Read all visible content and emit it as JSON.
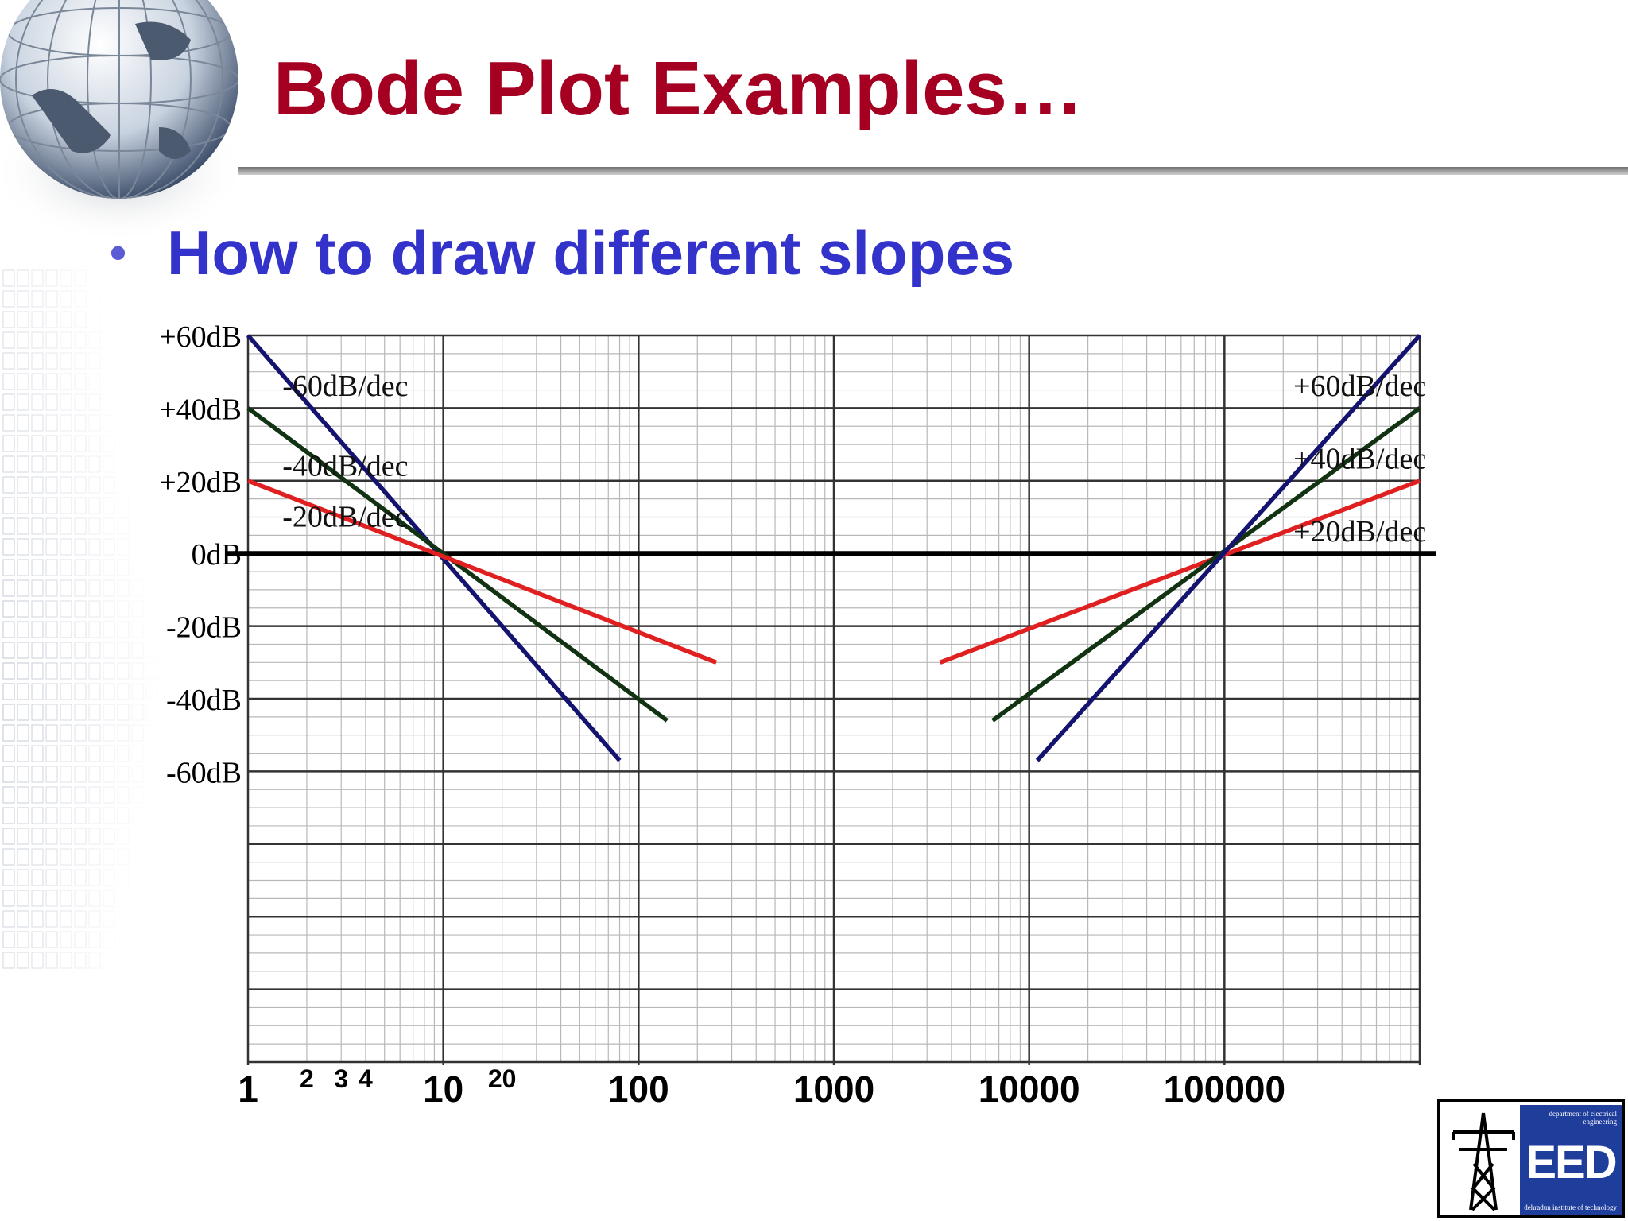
{
  "slide": {
    "title": "Bode Plot Examples…",
    "bullet": "How to draw different slopes",
    "bullet_marker": "•"
  },
  "logo": {
    "top_text": "department of electrical engineering",
    "mark": "EED",
    "bottom_text": "dehradun institute of technology"
  },
  "colors": {
    "title": "#A50021",
    "bullet": "#3333CC",
    "slope_20": "#E02020",
    "slope_40": "#123312",
    "slope_60": "#141470",
    "grid_major": "#333333",
    "grid_minor": "#b8b8b8",
    "zero_line": "#000000"
  },
  "chart_data": {
    "type": "line",
    "x_scale": "log",
    "xlim": [
      1,
      1000000
    ],
    "ylim": [
      -140,
      60
    ],
    "grid": true,
    "x_tick_labels": [
      {
        "x": 1,
        "label": "1",
        "size": "large"
      },
      {
        "x": 2,
        "label": "2",
        "size": "small"
      },
      {
        "x": 3,
        "label": "3",
        "size": "small"
      },
      {
        "x": 4,
        "label": "4",
        "size": "small"
      },
      {
        "x": 10,
        "label": "10",
        "size": "large"
      },
      {
        "x": 20,
        "label": "20",
        "size": "small"
      },
      {
        "x": 100,
        "label": "100",
        "size": "large"
      },
      {
        "x": 1000,
        "label": "1000",
        "size": "large"
      },
      {
        "x": 10000,
        "label": "10000",
        "size": "large"
      },
      {
        "x": 100000,
        "label": "100000",
        "size": "large"
      }
    ],
    "y_tick_labels": [
      {
        "y": 60,
        "label": "+60dB"
      },
      {
        "y": 40,
        "label": "+40dB"
      },
      {
        "y": 20,
        "label": "+20dB"
      },
      {
        "y": 0,
        "label": "0dB"
      },
      {
        "y": -20,
        "label": "-20dB"
      },
      {
        "y": -40,
        "label": "-40dB"
      },
      {
        "y": -60,
        "label": "-60dB"
      }
    ],
    "series": [
      {
        "color_key": "slope_60",
        "points": [
          [
            1,
            60
          ],
          [
            80,
            -57
          ]
        ]
      },
      {
        "color_key": "slope_40",
        "points": [
          [
            1,
            40
          ],
          [
            140,
            -46
          ]
        ]
      },
      {
        "color_key": "slope_20",
        "points": [
          [
            1,
            20
          ],
          [
            250,
            -30
          ]
        ]
      },
      {
        "color_key": "slope_20",
        "points": [
          [
            3500,
            -30
          ],
          [
            1000000,
            20
          ]
        ]
      },
      {
        "color_key": "slope_40",
        "points": [
          [
            6500,
            -46
          ],
          [
            1000000,
            40
          ]
        ]
      },
      {
        "color_key": "slope_60",
        "points": [
          [
            11000,
            -57
          ],
          [
            1000000,
            60
          ]
        ]
      }
    ],
    "annotations": [
      {
        "text": "-60dB/dec",
        "x": 1.5,
        "y": 46,
        "anchor": "start"
      },
      {
        "text": "-40dB/dec",
        "x": 1.5,
        "y": 24,
        "anchor": "start"
      },
      {
        "text": "-20dB/dec",
        "x": 1.5,
        "y": 10,
        "anchor": "start"
      },
      {
        "text": "+60dB/dec",
        "x": 1080000,
        "y": 46,
        "anchor": "end"
      },
      {
        "text": "+40dB/dec",
        "x": 1080000,
        "y": 26,
        "anchor": "end"
      },
      {
        "text": "+20dB/dec",
        "x": 1080000,
        "y": 6,
        "anchor": "end"
      }
    ]
  }
}
